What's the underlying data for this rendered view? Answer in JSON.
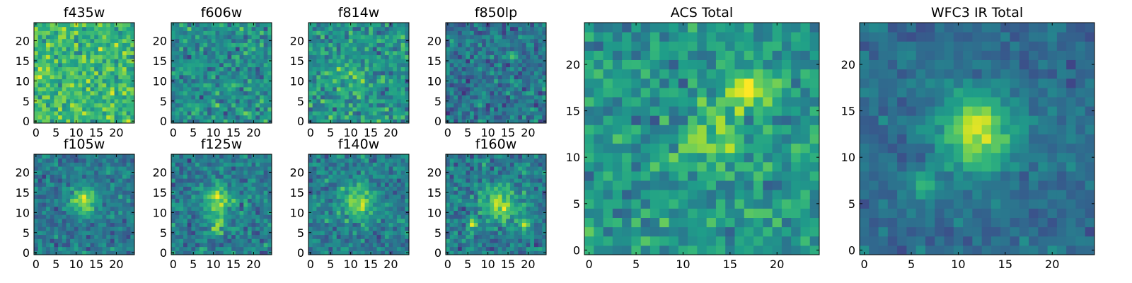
{
  "figure": {
    "background": "#ffffff"
  },
  "colormap": {
    "name": "viridis",
    "stops": [
      "#440154",
      "#482878",
      "#3e4989",
      "#31688e",
      "#26828e",
      "#1f9e89",
      "#35b779",
      "#6ece58",
      "#b5de2b",
      "#fde725"
    ]
  },
  "chart_data": [
    {
      "type": "heatmap",
      "title": "f435w",
      "grid": [
        25,
        25
      ],
      "xlim": [
        0,
        24
      ],
      "ylim": [
        0,
        24
      ],
      "xticks": [
        0,
        5,
        10,
        15,
        20
      ],
      "yticks": [
        0,
        5,
        10,
        15,
        20
      ],
      "grid_lines": false,
      "level": 0.68,
      "spread": 0.14,
      "blobs": []
    },
    {
      "type": "heatmap",
      "title": "f606w",
      "grid": [
        25,
        25
      ],
      "xlim": [
        0,
        24
      ],
      "ylim": [
        0,
        24
      ],
      "xticks": [
        0,
        5,
        10,
        15,
        20
      ],
      "yticks": [
        0,
        5,
        10,
        15,
        20
      ],
      "grid_lines": false,
      "level": 0.5,
      "spread": 0.14,
      "blobs": []
    },
    {
      "type": "heatmap",
      "title": "f814w",
      "grid": [
        25,
        25
      ],
      "xlim": [
        0,
        24
      ],
      "ylim": [
        0,
        24
      ],
      "xticks": [
        0,
        5,
        10,
        15,
        20
      ],
      "yticks": [
        0,
        5,
        10,
        15,
        20
      ],
      "grid_lines": false,
      "level": 0.5,
      "spread": 0.15,
      "blobs": [
        {
          "x": 10,
          "y": 10,
          "r": 3,
          "a": 0.18
        }
      ]
    },
    {
      "type": "heatmap",
      "title": "f850lp",
      "grid": [
        25,
        25
      ],
      "xlim": [
        0,
        24
      ],
      "ylim": [
        0,
        24
      ],
      "xticks": [
        0,
        5,
        10,
        15,
        20
      ],
      "yticks": [
        0,
        5,
        10,
        15,
        20
      ],
      "grid_lines": false,
      "level": 0.38,
      "spread": 0.13,
      "blobs": [
        {
          "x": 16,
          "y": 16,
          "r": 1,
          "a": 0.45
        }
      ]
    },
    {
      "type": "heatmap",
      "title": "f105w",
      "grid": [
        25,
        25
      ],
      "xlim": [
        0,
        24
      ],
      "ylim": [
        0,
        24
      ],
      "xticks": [
        0,
        5,
        10,
        15,
        20
      ],
      "yticks": [
        0,
        5,
        10,
        15,
        20
      ],
      "grid_lines": false,
      "level": 0.4,
      "spread": 0.11,
      "blobs": [
        {
          "x": 12,
          "y": 13,
          "r": 2.5,
          "a": 0.45
        }
      ]
    },
    {
      "type": "heatmap",
      "title": "f125w",
      "grid": [
        25,
        25
      ],
      "xlim": [
        0,
        24
      ],
      "ylim": [
        0,
        24
      ],
      "xticks": [
        0,
        5,
        10,
        15,
        20
      ],
      "yticks": [
        0,
        5,
        10,
        15,
        20
      ],
      "grid_lines": false,
      "level": 0.42,
      "spread": 0.13,
      "blobs": [
        {
          "x": 11,
          "y": 13,
          "r": 2.5,
          "a": 0.4
        },
        {
          "x": 11,
          "y": 7,
          "r": 1.5,
          "a": 0.35
        }
      ]
    },
    {
      "type": "heatmap",
      "title": "f140w",
      "grid": [
        25,
        25
      ],
      "xlim": [
        0,
        24
      ],
      "ylim": [
        0,
        24
      ],
      "xticks": [
        0,
        5,
        10,
        15,
        20
      ],
      "yticks": [
        0,
        5,
        10,
        15,
        20
      ],
      "grid_lines": false,
      "level": 0.42,
      "spread": 0.12,
      "blobs": [
        {
          "x": 12,
          "y": 13,
          "r": 3,
          "a": 0.42
        }
      ]
    },
    {
      "type": "heatmap",
      "title": "f160w",
      "grid": [
        25,
        25
      ],
      "xlim": [
        0,
        24
      ],
      "ylim": [
        0,
        24
      ],
      "xticks": [
        0,
        5,
        10,
        15,
        20
      ],
      "yticks": [
        0,
        5,
        10,
        15,
        20
      ],
      "grid_lines": false,
      "level": 0.42,
      "spread": 0.12,
      "blobs": [
        {
          "x": 13,
          "y": 12,
          "r": 3,
          "a": 0.45
        },
        {
          "x": 6,
          "y": 7,
          "r": 1,
          "a": 0.4
        },
        {
          "x": 19,
          "y": 7,
          "r": 1,
          "a": 0.4
        }
      ]
    },
    {
      "type": "heatmap",
      "title": "ACS Total",
      "grid": [
        25,
        25
      ],
      "xlim": [
        0,
        24
      ],
      "ylim": [
        0,
        24
      ],
      "xticks": [
        0,
        5,
        10,
        15,
        20
      ],
      "yticks": [
        0,
        5,
        10,
        15,
        20
      ],
      "grid_lines": false,
      "level": 0.52,
      "spread": 0.13,
      "blobs": [
        {
          "x": 16,
          "y": 17,
          "r": 1,
          "a": 0.5
        },
        {
          "x": 13,
          "y": 12,
          "r": 2,
          "a": 0.3
        },
        {
          "x": 18,
          "y": 17,
          "r": 1.5,
          "a": 0.25
        }
      ]
    },
    {
      "type": "heatmap",
      "title": "WFC3 IR Total",
      "grid": [
        25,
        25
      ],
      "xlim": [
        0,
        24
      ],
      "ylim": [
        0,
        24
      ],
      "xticks": [
        0,
        5,
        10,
        15,
        20
      ],
      "yticks": [
        0,
        5,
        10,
        15,
        20
      ],
      "grid_lines": false,
      "level": 0.36,
      "spread": 0.07,
      "blobs": [
        {
          "x": 12,
          "y": 13,
          "r": 2.8,
          "a": 0.55
        },
        {
          "x": 6,
          "y": 7,
          "r": 1,
          "a": 0.3
        }
      ]
    }
  ]
}
